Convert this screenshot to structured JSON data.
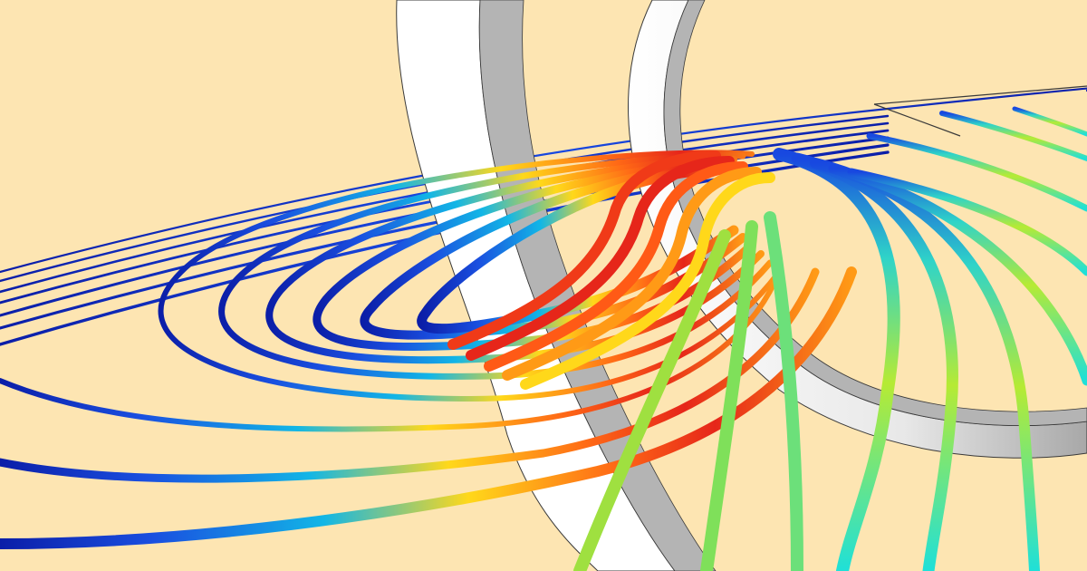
{
  "scene": {
    "background_color": "#fde5b2",
    "ring_face_color": "#ffffff",
    "ring_side_color": "#b4b4b4",
    "ring_edge_color": "#3a3a3a",
    "colormap": [
      "#0b1ea8",
      "#1848e0",
      "#12a7e6",
      "#1fe0d8",
      "#7fe05a",
      "#d9ee2a",
      "#ffe21a",
      "#ff9a16",
      "#f03a18",
      "#c21810"
    ]
  }
}
